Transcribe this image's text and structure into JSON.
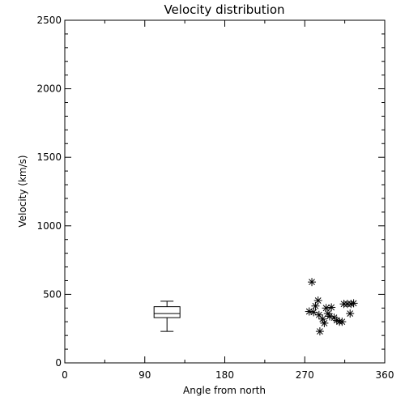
{
  "chart_data": {
    "type": "scatter",
    "title": "Velocity distribution",
    "xlabel": "Angle from north",
    "ylabel": "Velocity (km/s)",
    "xlim": [
      0,
      360
    ],
    "ylim": [
      0,
      2500
    ],
    "xticks": [
      0,
      90,
      180,
      270,
      360
    ],
    "yticks": [
      0,
      500,
      1000,
      1500,
      2000,
      2500
    ],
    "grid": false,
    "boxplot": {
      "x": 115,
      "min": 230,
      "q1": 330,
      "median": 360,
      "q3": 410,
      "max": 450
    },
    "points": [
      {
        "x": 278,
        "y": 590
      },
      {
        "x": 275,
        "y": 375
      },
      {
        "x": 280,
        "y": 370
      },
      {
        "x": 282,
        "y": 415
      },
      {
        "x": 285,
        "y": 455
      },
      {
        "x": 286,
        "y": 350
      },
      {
        "x": 287,
        "y": 230
      },
      {
        "x": 290,
        "y": 320
      },
      {
        "x": 292,
        "y": 290
      },
      {
        "x": 294,
        "y": 400
      },
      {
        "x": 296,
        "y": 360
      },
      {
        "x": 298,
        "y": 340
      },
      {
        "x": 300,
        "y": 405
      },
      {
        "x": 303,
        "y": 330
      },
      {
        "x": 306,
        "y": 310
      },
      {
        "x": 309,
        "y": 300
      },
      {
        "x": 312,
        "y": 300
      },
      {
        "x": 314,
        "y": 430
      },
      {
        "x": 318,
        "y": 430
      },
      {
        "x": 321,
        "y": 360
      },
      {
        "x": 322,
        "y": 430
      },
      {
        "x": 325,
        "y": 435
      }
    ]
  }
}
